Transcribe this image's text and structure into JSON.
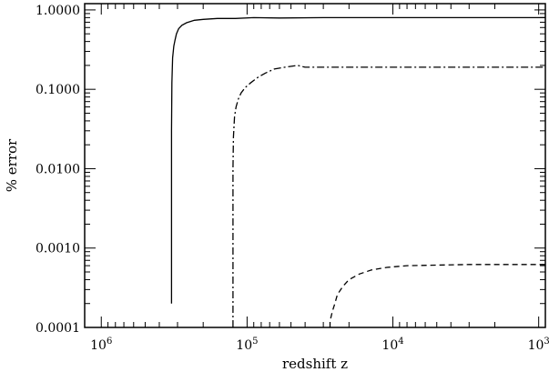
{
  "chart_data": {
    "type": "line",
    "xlabel": "redshift z",
    "ylabel": "% error",
    "xscale": "log",
    "yscale": "log",
    "x_reversed": true,
    "xlim": [
      1300000,
      900
    ],
    "ylim": [
      0.0001,
      1.2
    ],
    "grid": false,
    "x_ticks": [
      {
        "value": 1000000,
        "base": "10",
        "exp": "6"
      },
      {
        "value": 100000,
        "base": "10",
        "exp": "5"
      },
      {
        "value": 10000,
        "base": "10",
        "exp": "4"
      },
      {
        "value": 1000,
        "base": "10",
        "exp": "3"
      }
    ],
    "y_ticks": [
      {
        "value": 1,
        "label": "1.0000"
      },
      {
        "value": 0.1,
        "label": "0.1000"
      },
      {
        "value": 0.01,
        "label": "0.0100"
      },
      {
        "value": 0.001,
        "label": "0.0010"
      },
      {
        "value": 0.0001,
        "label": "0.0001"
      }
    ],
    "series": [
      {
        "style": "solid",
        "x": [
          330000,
          330000,
          328000,
          324000,
          318000,
          312000,
          305000,
          295000,
          280000,
          260000,
          230000,
          200000,
          160000,
          120000,
          90000,
          60000,
          30000,
          10000,
          3000,
          900
        ],
        "y": [
          0.0002,
          0.03,
          0.12,
          0.25,
          0.35,
          0.42,
          0.5,
          0.58,
          0.64,
          0.69,
          0.74,
          0.76,
          0.78,
          0.78,
          0.8,
          0.79,
          0.8,
          0.8,
          0.8,
          0.8
        ]
      },
      {
        "style": "dashdot",
        "x": [
          125000,
          125000,
          124000,
          122000,
          119000,
          115000,
          110000,
          103000,
          95000,
          85000,
          75000,
          65000,
          55000,
          45000,
          40000,
          20000,
          5000,
          900
        ],
        "y": [
          0.0001,
          0.01,
          0.025,
          0.045,
          0.06,
          0.075,
          0.09,
          0.105,
          0.12,
          0.14,
          0.16,
          0.18,
          0.19,
          0.2,
          0.19,
          0.19,
          0.19,
          0.19
        ]
      },
      {
        "style": "dashed",
        "x": [
          27000,
          27000,
          26000,
          25000,
          24000,
          22000,
          20000,
          17000,
          14000,
          11000,
          8000,
          5000,
          3000,
          900
        ],
        "y": [
          0.0001,
          0.00012,
          0.00016,
          0.0002,
          0.00026,
          0.00033,
          0.0004,
          0.00047,
          0.00053,
          0.00057,
          0.0006,
          0.00061,
          0.00062,
          0.00062
        ]
      }
    ]
  }
}
